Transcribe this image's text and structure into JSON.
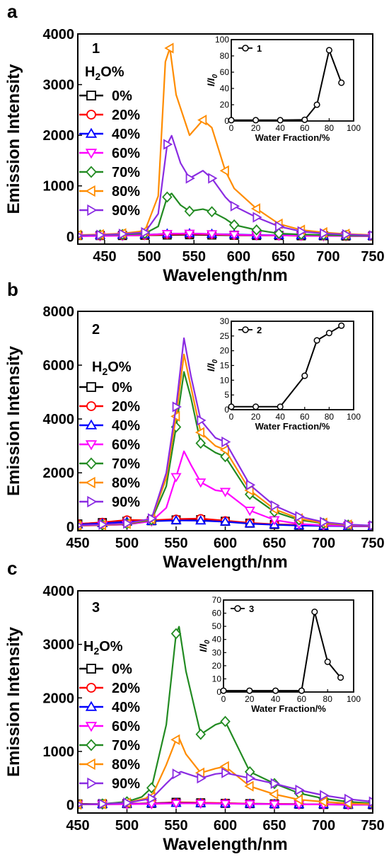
{
  "chart_data": [
    {
      "panel_letter": "a",
      "sample_label": "1",
      "type": "line",
      "xlabel": "Wavelength/nm",
      "ylabel": "Emission Intensity",
      "xlim": [
        420,
        750
      ],
      "ylim": [
        -150,
        4000
      ],
      "xticks": [
        450,
        500,
        550,
        600,
        650,
        700,
        750
      ],
      "yticks": [
        0,
        1000,
        2000,
        3000,
        4000
      ],
      "legend_title": "H2O%",
      "legend_position": "left",
      "series": [
        {
          "name": "0%",
          "color": "#000000",
          "marker": "square",
          "x": [
            420,
            445,
            470,
            495,
            520,
            545,
            570,
            595,
            620,
            645,
            670,
            695,
            720,
            750
          ],
          "y": [
            20,
            20,
            20,
            25,
            30,
            35,
            30,
            25,
            20,
            20,
            15,
            15,
            10,
            10
          ]
        },
        {
          "name": "20%",
          "color": "#ff0000",
          "marker": "circle",
          "x": [
            420,
            445,
            470,
            495,
            520,
            545,
            570,
            595,
            620,
            645,
            670,
            695,
            720,
            750
          ],
          "y": [
            15,
            15,
            20,
            25,
            40,
            45,
            40,
            30,
            25,
            20,
            15,
            15,
            10,
            10
          ]
        },
        {
          "name": "40%",
          "color": "#0000ff",
          "marker": "triangle-up",
          "x": [
            420,
            445,
            470,
            495,
            520,
            545,
            570,
            595,
            620,
            645,
            670,
            695,
            720,
            750
          ],
          "y": [
            25,
            25,
            30,
            35,
            55,
            60,
            50,
            40,
            30,
            25,
            20,
            15,
            15,
            10
          ]
        },
        {
          "name": "60%",
          "color": "#ff00ff",
          "marker": "triangle-down",
          "x": [
            420,
            445,
            470,
            495,
            520,
            545,
            570,
            595,
            620,
            645,
            670,
            695,
            720,
            750
          ],
          "y": [
            5,
            10,
            15,
            30,
            55,
            60,
            50,
            35,
            25,
            20,
            15,
            10,
            10,
            5
          ]
        },
        {
          "name": "70%",
          "color": "#228b22",
          "marker": "diamond",
          "x": [
            420,
            445,
            470,
            495,
            510,
            520,
            525,
            535,
            545,
            560,
            570,
            585,
            595,
            620,
            645,
            670,
            695,
            720,
            750
          ],
          "y": [
            20,
            30,
            40,
            60,
            200,
            780,
            850,
            620,
            500,
            540,
            490,
            350,
            230,
            130,
            60,
            40,
            30,
            20,
            15
          ]
        },
        {
          "name": "80%",
          "color": "#ff8c00",
          "marker": "triangle-left",
          "x": [
            420,
            445,
            470,
            495,
            510,
            518,
            523,
            530,
            545,
            560,
            570,
            585,
            595,
            620,
            645,
            670,
            695,
            720,
            750
          ],
          "y": [
            30,
            40,
            60,
            110,
            800,
            3450,
            3720,
            2800,
            2000,
            2300,
            2150,
            1300,
            950,
            550,
            250,
            130,
            80,
            50,
            30
          ]
        },
        {
          "name": "90%",
          "color": "#8a2be2",
          "marker": "triangle-right",
          "x": [
            420,
            445,
            470,
            495,
            510,
            520,
            525,
            535,
            545,
            560,
            570,
            585,
            595,
            620,
            645,
            670,
            695,
            720,
            750
          ],
          "y": [
            20,
            30,
            50,
            80,
            450,
            1820,
            1990,
            1450,
            1150,
            1300,
            1150,
            780,
            600,
            380,
            200,
            100,
            60,
            40,
            20
          ]
        }
      ],
      "inset": {
        "legend_label": "1",
        "ylabel_main": "I/I",
        "ylabel_sub": "0",
        "xlabel": "Water Fraction/%",
        "xlim": [
          0,
          100
        ],
        "ylim": [
          0,
          100
        ],
        "xticks": [
          0,
          20,
          40,
          60,
          80,
          100
        ],
        "yticks": [
          0,
          20,
          40,
          60,
          80,
          100
        ],
        "x": [
          0,
          20,
          40,
          60,
          70,
          80,
          90
        ],
        "y": [
          1,
          1,
          1,
          1.5,
          20,
          87,
          47
        ]
      }
    },
    {
      "panel_letter": "b",
      "sample_label": "2",
      "type": "line",
      "xlabel": "Wavelength/nm",
      "ylabel": "Emission Intensity",
      "xlim": [
        450,
        750
      ],
      "ylim": [
        -150,
        8000
      ],
      "xticks": [
        450,
        500,
        550,
        600,
        650,
        700,
        750
      ],
      "yticks": [
        0,
        2000,
        4000,
        6000,
        8000
      ],
      "legend_title": "H2O%",
      "legend_position": "left",
      "series": [
        {
          "name": "0%",
          "color": "#000000",
          "marker": "square",
          "x": [
            450,
            475,
            500,
            525,
            550,
            575,
            600,
            625,
            650,
            675,
            700,
            725,
            750
          ],
          "y": [
            100,
            150,
            200,
            220,
            250,
            260,
            200,
            130,
            80,
            50,
            30,
            20,
            15
          ]
        },
        {
          "name": "20%",
          "color": "#ff0000",
          "marker": "circle",
          "x": [
            450,
            475,
            500,
            525,
            550,
            575,
            600,
            625,
            650,
            675,
            700,
            725,
            750
          ],
          "y": [
            100,
            160,
            250,
            240,
            280,
            300,
            220,
            140,
            90,
            60,
            40,
            25,
            15
          ]
        },
        {
          "name": "40%",
          "color": "#0000ff",
          "marker": "triangle-up",
          "x": [
            450,
            475,
            500,
            525,
            550,
            575,
            600,
            625,
            650,
            675,
            700,
            725,
            750
          ],
          "y": [
            80,
            120,
            180,
            200,
            230,
            220,
            180,
            110,
            70,
            40,
            25,
            15,
            10
          ]
        },
        {
          "name": "60%",
          "color": "#ff00ff",
          "marker": "triangle-down",
          "x": [
            450,
            475,
            500,
            525,
            540,
            550,
            558,
            565,
            575,
            590,
            600,
            625,
            650,
            675,
            700,
            725,
            750
          ],
          "y": [
            30,
            50,
            80,
            200,
            700,
            1850,
            2800,
            2300,
            1650,
            1350,
            1300,
            600,
            250,
            100,
            50,
            30,
            15
          ]
        },
        {
          "name": "70%",
          "color": "#228b22",
          "marker": "diamond",
          "x": [
            450,
            475,
            500,
            525,
            540,
            550,
            558,
            565,
            575,
            590,
            600,
            625,
            650,
            675,
            700,
            725,
            750
          ],
          "y": [
            40,
            60,
            100,
            250,
            1500,
            3700,
            5750,
            4800,
            3100,
            2750,
            2600,
            1200,
            550,
            250,
            120,
            60,
            30
          ]
        },
        {
          "name": "80%",
          "color": "#ff8c00",
          "marker": "triangle-left",
          "x": [
            450,
            475,
            500,
            525,
            540,
            550,
            558,
            565,
            575,
            590,
            600,
            625,
            650,
            675,
            700,
            725,
            750
          ],
          "y": [
            40,
            60,
            110,
            280,
            1800,
            4100,
            6400,
            5200,
            3500,
            3000,
            2850,
            1350,
            650,
            300,
            140,
            70,
            30
          ]
        },
        {
          "name": "90%",
          "color": "#8a2be2",
          "marker": "triangle-right",
          "x": [
            450,
            475,
            500,
            525,
            540,
            550,
            558,
            565,
            575,
            590,
            600,
            625,
            650,
            675,
            700,
            725,
            750
          ],
          "y": [
            50,
            80,
            120,
            300,
            2000,
            4450,
            7000,
            5600,
            3950,
            3300,
            3150,
            1550,
            780,
            380,
            170,
            80,
            40
          ]
        }
      ],
      "inset": {
        "legend_label": "2",
        "ylabel_main": "I/I",
        "ylabel_sub": "0",
        "xlabel": "Water Fraction/%",
        "xlim": [
          0,
          100
        ],
        "ylim": [
          0,
          30
        ],
        "xticks": [
          0,
          20,
          40,
          60,
          80,
          100
        ],
        "yticks": [
          0,
          5,
          10,
          15,
          20,
          25,
          30
        ],
        "x": [
          0,
          20,
          40,
          60,
          70,
          80,
          90
        ],
        "y": [
          1,
          1,
          1,
          11.5,
          23.5,
          26,
          28.5
        ]
      }
    },
    {
      "panel_letter": "c",
      "sample_label": "3",
      "type": "line",
      "xlabel": "Wavelength/nm",
      "ylabel": "Emission Intensity",
      "xlim": [
        450,
        750
      ],
      "ylim": [
        -150,
        4000
      ],
      "xticks": [
        450,
        500,
        550,
        600,
        650,
        700,
        750
      ],
      "yticks": [
        0,
        1000,
        2000,
        3000,
        4000
      ],
      "legend_title": "H2O%",
      "legend_position": "left",
      "series": [
        {
          "name": "0%",
          "color": "#000000",
          "marker": "square",
          "x": [
            450,
            475,
            500,
            525,
            550,
            575,
            600,
            625,
            650,
            675,
            700,
            725,
            750
          ],
          "y": [
            20,
            20,
            25,
            30,
            50,
            40,
            30,
            25,
            20,
            15,
            10,
            10,
            5
          ]
        },
        {
          "name": "20%",
          "color": "#ff0000",
          "marker": "circle",
          "x": [
            450,
            475,
            500,
            525,
            550,
            575,
            600,
            625,
            650,
            675,
            700,
            725,
            750
          ],
          "y": [
            15,
            20,
            25,
            30,
            45,
            40,
            35,
            25,
            20,
            15,
            10,
            10,
            5
          ]
        },
        {
          "name": "40%",
          "color": "#0000ff",
          "marker": "triangle-up",
          "x": [
            450,
            475,
            500,
            525,
            550,
            575,
            600,
            625,
            650,
            675,
            700,
            725,
            750
          ],
          "y": [
            10,
            15,
            20,
            25,
            35,
            30,
            25,
            20,
            15,
            10,
            10,
            5,
            5
          ]
        },
        {
          "name": "60%",
          "color": "#ff00ff",
          "marker": "triangle-down",
          "x": [
            450,
            475,
            500,
            525,
            550,
            575,
            600,
            625,
            650,
            675,
            700,
            725,
            750
          ],
          "y": [
            10,
            10,
            15,
            20,
            30,
            30,
            25,
            20,
            15,
            10,
            10,
            5,
            5
          ]
        },
        {
          "name": "70%",
          "color": "#228b22",
          "marker": "diamond",
          "x": [
            450,
            475,
            500,
            515,
            525,
            540,
            550,
            553,
            560,
            575,
            590,
            600,
            625,
            650,
            675,
            700,
            725,
            750
          ],
          "y": [
            10,
            20,
            60,
            150,
            320,
            1500,
            3200,
            3330,
            2500,
            1320,
            1500,
            1560,
            620,
            400,
            220,
            120,
            60,
            30
          ]
        },
        {
          "name": "80%",
          "color": "#ff8c00",
          "marker": "triangle-left",
          "x": [
            450,
            475,
            500,
            525,
            540,
            550,
            553,
            560,
            575,
            590,
            600,
            625,
            650,
            675,
            700,
            725,
            750
          ],
          "y": [
            10,
            20,
            40,
            150,
            750,
            1220,
            1250,
            950,
            600,
            680,
            720,
            350,
            200,
            100,
            60,
            30,
            15
          ]
        },
        {
          "name": "90%",
          "color": "#8a2be2",
          "marker": "triangle-right",
          "x": [
            450,
            475,
            500,
            525,
            540,
            550,
            555,
            565,
            575,
            590,
            600,
            625,
            650,
            675,
            700,
            725,
            750
          ],
          "y": [
            10,
            20,
            40,
            120,
            400,
            580,
            620,
            560,
            500,
            580,
            600,
            500,
            400,
            280,
            180,
            110,
            60
          ]
        }
      ],
      "inset": {
        "legend_label": "3",
        "ylabel_main": "I/I",
        "ylabel_sub": "0",
        "xlabel": "Water Fraction/%",
        "xlim": [
          0,
          100
        ],
        "ylim": [
          0,
          70
        ],
        "xticks": [
          0,
          20,
          40,
          60,
          80,
          100
        ],
        "yticks": [
          0,
          10,
          20,
          30,
          40,
          50,
          60,
          70
        ],
        "x": [
          0,
          20,
          40,
          60,
          70,
          80,
          90
        ],
        "y": [
          1,
          1,
          1,
          1,
          61,
          23,
          11
        ]
      }
    }
  ]
}
